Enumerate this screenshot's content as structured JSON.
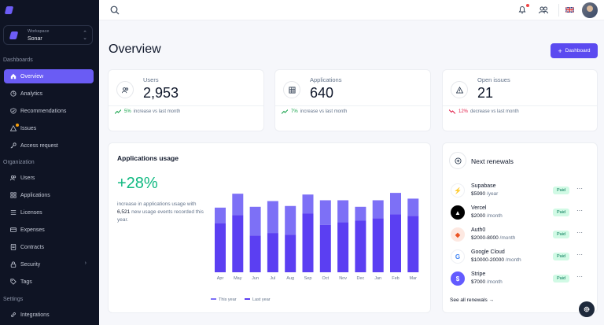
{
  "sidebar": {
    "workspace_label": "Workspace",
    "workspace_name": "Sonar",
    "sections": {
      "dashboards": "Dashboards",
      "organization": "Organization",
      "settings": "Settings"
    },
    "items": [
      {
        "label": "Overview",
        "icon": "home-icon",
        "active": true
      },
      {
        "label": "Analytics",
        "icon": "analytics-icon"
      },
      {
        "label": "Recommendations",
        "icon": "shield-check-icon"
      },
      {
        "label": "Issues",
        "icon": "warning-icon"
      },
      {
        "label": "Access request",
        "icon": "key-icon"
      },
      {
        "label": "Users",
        "icon": "users-icon"
      },
      {
        "label": "Applications",
        "icon": "grid-icon"
      },
      {
        "label": "Licenses",
        "icon": "list-icon"
      },
      {
        "label": "Expenses",
        "icon": "card-icon"
      },
      {
        "label": "Contracts",
        "icon": "document-icon"
      },
      {
        "label": "Security",
        "icon": "lock-icon",
        "chevron": "›"
      },
      {
        "label": "Tags",
        "icon": "tag-icon"
      },
      {
        "label": "Integrations",
        "icon": "link-icon"
      }
    ]
  },
  "header": {
    "title": "Overview",
    "dashboard_button": "Dashboard",
    "plus": "+"
  },
  "stats": [
    {
      "label": "Users",
      "value": "2,953",
      "change": "5%",
      "change_text": "increase vs last month",
      "trend": "up"
    },
    {
      "label": "Applications",
      "value": "640",
      "change": "7%",
      "change_text": "increase vs last month",
      "trend": "up"
    },
    {
      "label": "Open issues",
      "value": "21",
      "change": "12%",
      "change_text": "decrease vs last month",
      "trend": "down"
    }
  ],
  "usage": {
    "title": "Applications usage",
    "percent": "+28%",
    "desc_prefix": "increase in applications usage with ",
    "desc_count": "6,521",
    "desc_suffix": " new usage events recorded this year."
  },
  "chart_data": {
    "type": "bar",
    "stacked": true,
    "categories": [
      "Apr",
      "May",
      "Jun",
      "Jul",
      "Aug",
      "Sep",
      "Oct",
      "Nov",
      "Dec",
      "Jan",
      "Feb",
      "Mar"
    ],
    "series": [
      {
        "name": "Last year",
        "values": [
          60,
          70,
          45,
          48,
          46,
          72,
          58,
          61,
          63,
          66,
          71,
          69
        ],
        "color": "#5b3ff2"
      },
      {
        "name": "This year",
        "values": [
          19,
          26,
          35,
          39,
          35,
          23,
          30,
          27,
          17,
          22,
          26,
          21
        ],
        "color": "#7d70f6"
      }
    ],
    "ylim": [
      0,
      100
    ],
    "legend_position": "bottom-left",
    "grid": false
  },
  "renewals": {
    "title": "Next renewals",
    "see_all": "See all renewals",
    "see_all_arrow": "→",
    "more": "···",
    "items": [
      {
        "name": "Supabase",
        "price": "$5990",
        "period": "/year",
        "status": "Paid",
        "logo_bg": "#ffffff",
        "logo_color": "#3ecf8e",
        "logo_text": "⚡"
      },
      {
        "name": "Vercel",
        "price": "$2000",
        "period": "/month",
        "status": "Paid",
        "logo_bg": "#000000",
        "logo_color": "#ffffff",
        "logo_text": "▲"
      },
      {
        "name": "Auth0",
        "price": "$2000-8000",
        "period": "/month",
        "status": "Paid",
        "logo_bg": "#fde8e1",
        "logo_color": "#eb5424",
        "logo_text": "◆"
      },
      {
        "name": "Google Cloud",
        "price": "$10000-20000",
        "period": "/month",
        "status": "Paid",
        "logo_bg": "#ffffff",
        "logo_color": "#4285f4",
        "logo_text": "G"
      },
      {
        "name": "Stripe",
        "price": "$7000",
        "period": "/month",
        "status": "Paid",
        "logo_bg": "#635bff",
        "logo_color": "#ffffff",
        "logo_text": "$"
      }
    ]
  },
  "colors": {
    "accent": "#5b4af0",
    "success": "#10b981",
    "danger": "#e11d48",
    "sidebar": "#0f1424"
  }
}
